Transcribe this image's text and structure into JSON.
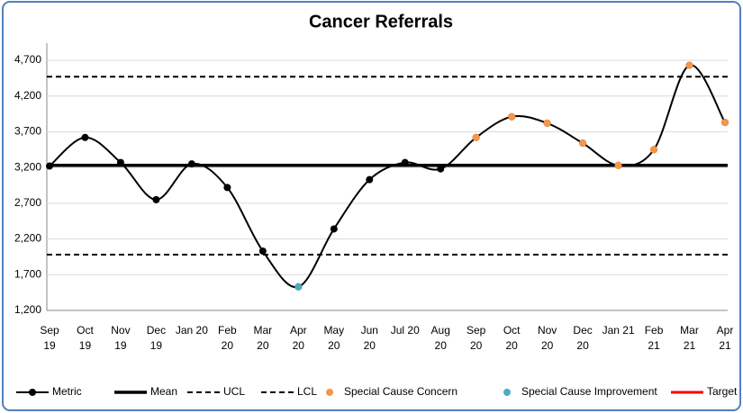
{
  "chart_data": {
    "type": "line",
    "title": "Cancer Referrals",
    "categories": [
      "Sep\n19",
      "Oct\n19",
      "Nov\n19",
      "Dec\n19",
      "Jan 20",
      "Feb\n20",
      "Mar\n20",
      "Apr\n20",
      "May\n20",
      "Jun\n20",
      "Jul 20",
      "Aug\n20",
      "Sep\n20",
      "Oct\n20",
      "Nov\n20",
      "Dec\n20",
      "Jan 21",
      "Feb\n21",
      "Mar\n21",
      "Apr\n21"
    ],
    "ylim": [
      1200,
      4700
    ],
    "yticks": [
      {
        "value": 1200,
        "label": "1,200"
      },
      {
        "value": 1700,
        "label": "1,700"
      },
      {
        "value": 2200,
        "label": "2,200"
      },
      {
        "value": 2700,
        "label": "2,700"
      },
      {
        "value": 3200,
        "label": "3,200"
      },
      {
        "value": 3700,
        "label": "3,700"
      },
      {
        "value": 4200,
        "label": "4,200"
      },
      {
        "value": 4700,
        "label": "4,700"
      }
    ],
    "grid": true,
    "series": [
      {
        "name": "Metric",
        "color": "#000000",
        "values": [
          3220,
          3620,
          3270,
          2750,
          3250,
          2920,
          2030,
          1530,
          2340,
          3030,
          3270,
          3180,
          3620,
          3910,
          3820,
          3540,
          3230,
          3450,
          4630,
          3830
        ]
      },
      {
        "name": "Mean",
        "color": "#000000",
        "value": 3230
      },
      {
        "name": "UCL",
        "color": "#000000",
        "value": 4470
      },
      {
        "name": "LCL",
        "color": "#000000",
        "value": 1980
      },
      {
        "name": "Special Cause Concern",
        "color": "#f79646",
        "values": [
          null,
          null,
          null,
          null,
          null,
          null,
          null,
          null,
          null,
          null,
          null,
          null,
          3620,
          3910,
          3820,
          3540,
          3230,
          3450,
          4630,
          3830
        ]
      },
      {
        "name": "Special Cause Improvement",
        "color": "#4bacc6",
        "values": [
          null,
          null,
          null,
          null,
          null,
          null,
          null,
          1530,
          null,
          null,
          null,
          null,
          null,
          null,
          null,
          null,
          null,
          null,
          null,
          null
        ]
      },
      {
        "name": "Target",
        "color": "#ff0000"
      }
    ]
  }
}
